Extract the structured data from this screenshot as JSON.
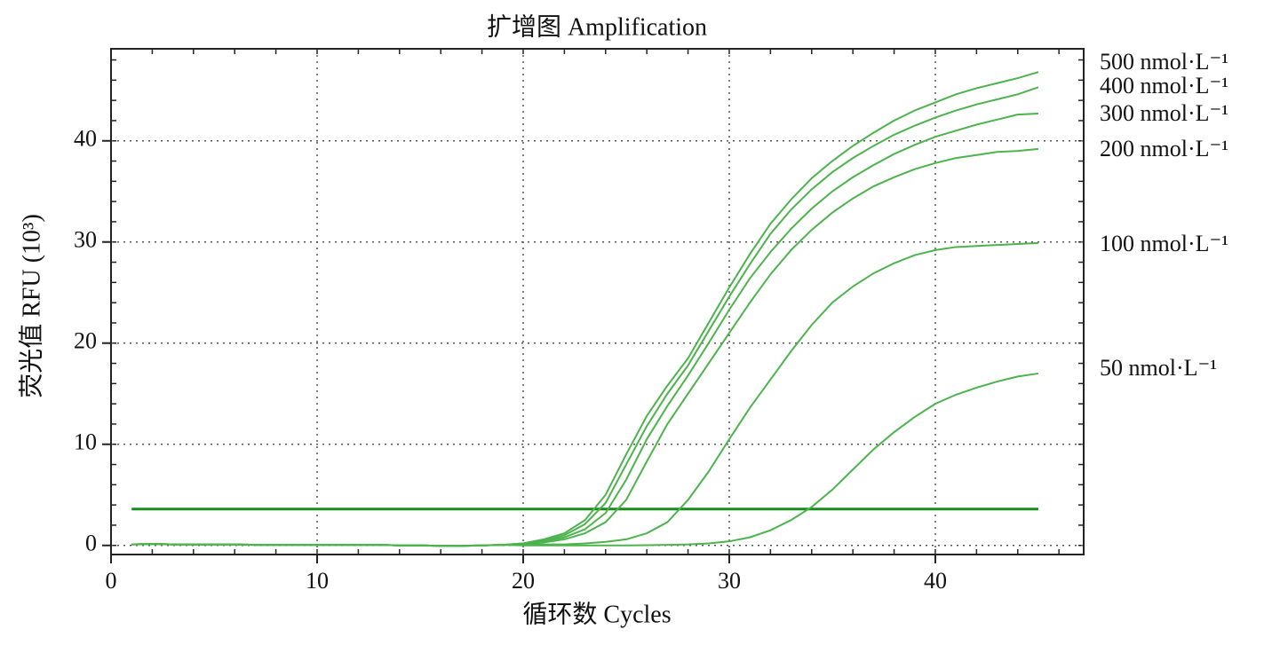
{
  "chart_data": {
    "type": "line",
    "title": "扩增图 Amplification",
    "x_label": "循环数 Cycles",
    "y_label": "荧光值 RFU (10³)",
    "xlim": [
      0,
      47.2
    ],
    "ylim": [
      -0.9,
      49.1
    ],
    "xticks": [
      0,
      10,
      20,
      30,
      40
    ],
    "yticks": [
      0,
      10,
      20,
      30,
      40
    ],
    "grid": true,
    "threshold": 3.6,
    "threshold_color": "#1b8a1b",
    "x": [
      1,
      2,
      3,
      4,
      5,
      6,
      7,
      8,
      9,
      10,
      11,
      12,
      13,
      14,
      15,
      16,
      17,
      18,
      19,
      20,
      21,
      22,
      23,
      24,
      25,
      26,
      27,
      28,
      29,
      30,
      31,
      32,
      33,
      34,
      35,
      36,
      37,
      38,
      39,
      40,
      41,
      42,
      43,
      44,
      45
    ],
    "series": [
      {
        "name": "500 nmol·L⁻¹",
        "color": "#4db34d",
        "values": [
          0.1,
          0.15,
          0.1,
          0.1,
          0.1,
          0.1,
          0.05,
          0.05,
          0.05,
          0.05,
          0.05,
          0.05,
          0.05,
          0.0,
          0.0,
          -0.05,
          -0.05,
          0.0,
          0.05,
          0.2,
          0.6,
          1.2,
          2.5,
          5.0,
          9.0,
          12.8,
          15.8,
          18.5,
          22.0,
          25.5,
          28.8,
          31.8,
          34.2,
          36.3,
          38.0,
          39.5,
          40.8,
          42.0,
          43.0,
          43.8,
          44.6,
          45.2,
          45.7,
          46.2,
          46.8
        ]
      },
      {
        "name": "400 nmol·L⁻¹",
        "color": "#4db34d",
        "values": [
          0.1,
          0.15,
          0.1,
          0.1,
          0.1,
          0.1,
          0.05,
          0.05,
          0.05,
          0.05,
          0.05,
          0.05,
          0.05,
          0.0,
          0.0,
          -0.05,
          -0.05,
          0.0,
          0.05,
          0.2,
          0.5,
          1.0,
          2.1,
          4.2,
          8.0,
          11.8,
          15.0,
          17.8,
          21.2,
          24.6,
          27.8,
          30.8,
          33.2,
          35.2,
          36.9,
          38.3,
          39.5,
          40.6,
          41.5,
          42.3,
          43.0,
          43.6,
          44.1,
          44.6,
          45.3
        ]
      },
      {
        "name": "300 nmol·L⁻¹",
        "color": "#4db34d",
        "values": [
          0.1,
          0.15,
          0.1,
          0.1,
          0.1,
          0.1,
          0.05,
          0.05,
          0.05,
          0.05,
          0.05,
          0.05,
          0.05,
          0.0,
          0.0,
          -0.05,
          -0.05,
          0.0,
          0.05,
          0.15,
          0.4,
          0.8,
          1.6,
          3.2,
          6.5,
          10.5,
          13.8,
          16.8,
          20.0,
          23.3,
          26.4,
          29.0,
          31.3,
          33.3,
          35.0,
          36.4,
          37.6,
          38.7,
          39.6,
          40.4,
          41.0,
          41.6,
          42.1,
          42.6,
          42.7
        ]
      },
      {
        "name": "200 nmol·L⁻¹",
        "color": "#4db34d",
        "values": [
          0.1,
          0.15,
          0.1,
          0.1,
          0.1,
          0.1,
          0.05,
          0.05,
          0.05,
          0.05,
          0.05,
          0.05,
          0.05,
          0.0,
          0.0,
          -0.05,
          -0.05,
          0.0,
          0.05,
          0.1,
          0.3,
          0.6,
          1.2,
          2.3,
          4.5,
          8.3,
          12.0,
          15.0,
          18.0,
          21.0,
          24.0,
          26.8,
          29.2,
          31.2,
          32.9,
          34.3,
          35.5,
          36.4,
          37.2,
          37.8,
          38.3,
          38.6,
          38.9,
          39.0,
          39.2
        ]
      },
      {
        "name": "100 nmol·L⁻¹",
        "color": "#4db34d",
        "values": [
          0.1,
          0.15,
          0.1,
          0.1,
          0.1,
          0.1,
          0.05,
          0.05,
          0.05,
          0.05,
          0.05,
          0.05,
          0.05,
          0.0,
          0.0,
          -0.05,
          -0.05,
          0.0,
          0.05,
          0.05,
          0.1,
          0.1,
          0.2,
          0.35,
          0.6,
          1.2,
          2.3,
          4.5,
          7.3,
          10.5,
          13.6,
          16.4,
          19.2,
          21.8,
          24.0,
          25.6,
          26.9,
          27.9,
          28.7,
          29.2,
          29.5,
          29.6,
          29.7,
          29.8,
          29.9
        ]
      },
      {
        "name": "50 nmol·L⁻¹",
        "color": "#4db34d",
        "values": [
          0.1,
          0.15,
          0.1,
          0.1,
          0.1,
          0.1,
          0.05,
          0.05,
          0.05,
          0.05,
          0.05,
          0.05,
          0.05,
          0.0,
          0.0,
          -0.05,
          -0.05,
          0.0,
          0.05,
          0.0,
          0.0,
          0.0,
          0.0,
          0.0,
          0.0,
          0.02,
          0.05,
          0.1,
          0.2,
          0.4,
          0.8,
          1.5,
          2.5,
          3.8,
          5.5,
          7.5,
          9.5,
          11.2,
          12.7,
          14.0,
          14.9,
          15.6,
          16.2,
          16.7,
          17.0
        ]
      }
    ]
  }
}
